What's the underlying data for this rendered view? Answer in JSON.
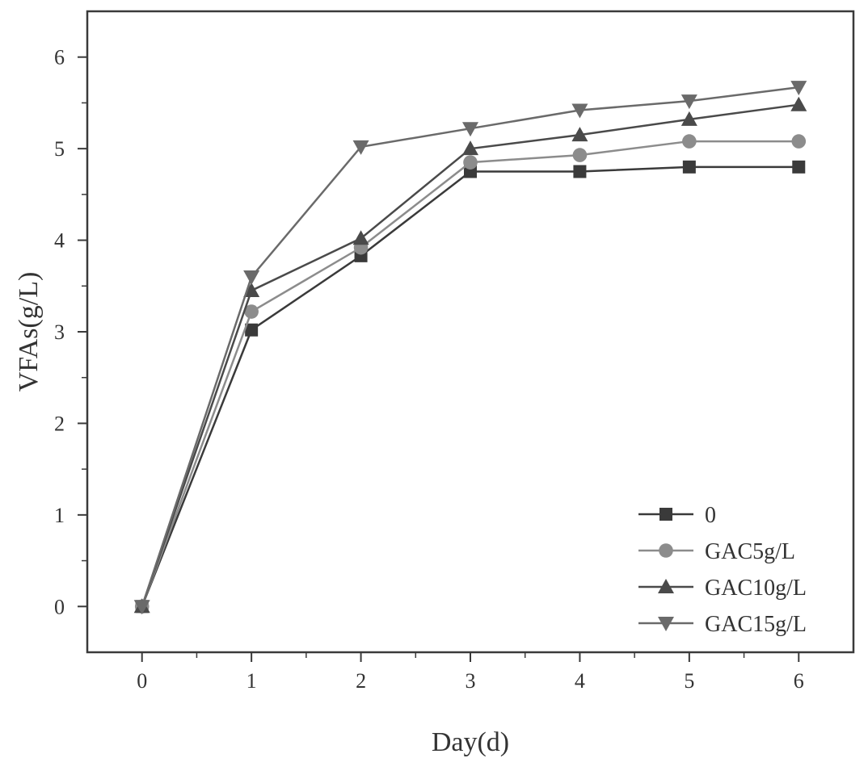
{
  "chart_data": {
    "type": "line",
    "xlabel": "Day(d)",
    "ylabel": "VFAs(g/L)",
    "x": [
      0,
      1,
      2,
      3,
      4,
      5,
      6
    ],
    "xlim": [
      -0.5,
      6.5
    ],
    "ylim": [
      -0.5,
      6.5
    ],
    "xticks": [
      "0",
      "1",
      "2",
      "3",
      "4",
      "5",
      "6"
    ],
    "yticks": [
      "0",
      "1",
      "2",
      "3",
      "4",
      "5",
      "6"
    ],
    "grid": false,
    "legend_position": "bottom-right",
    "series": [
      {
        "name": "0",
        "marker": "square",
        "color": "#3a3a3a",
        "values": [
          0,
          3.02,
          3.83,
          4.75,
          4.75,
          4.8,
          4.8
        ]
      },
      {
        "name": "GAC5g/L",
        "marker": "circle",
        "color": "#8c8c8c",
        "values": [
          0,
          3.22,
          3.92,
          4.85,
          4.93,
          5.08,
          5.08
        ]
      },
      {
        "name": "GAC10g/L",
        "marker": "triangle-up",
        "color": "#4a4a4a",
        "values": [
          0,
          3.45,
          4.02,
          5.0,
          5.15,
          5.32,
          5.48
        ]
      },
      {
        "name": "GAC15g/L",
        "marker": "triangle-down",
        "color": "#6a6a6a",
        "values": [
          0,
          3.6,
          5.02,
          5.22,
          5.42,
          5.52,
          5.67
        ]
      }
    ]
  }
}
